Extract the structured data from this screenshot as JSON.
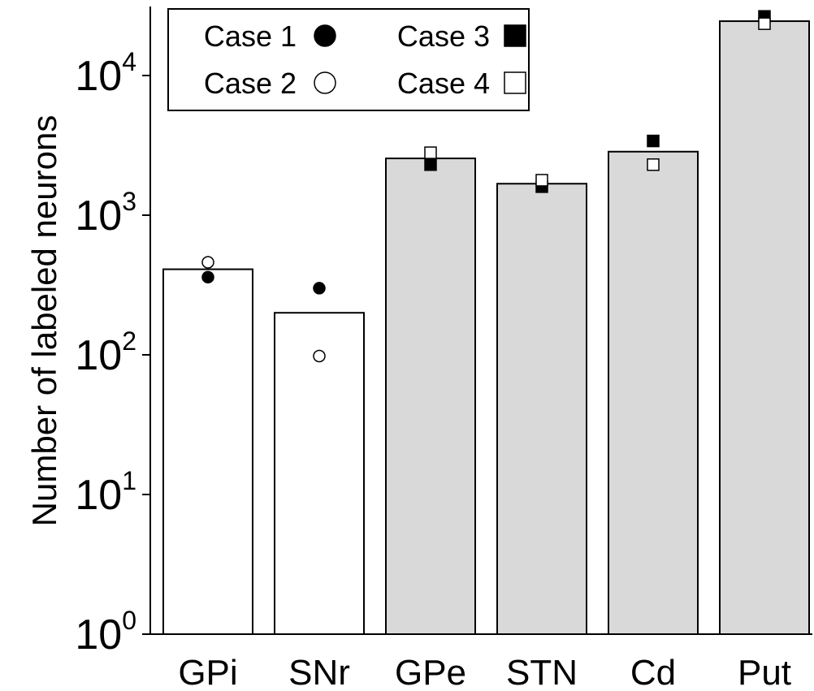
{
  "chart_data": {
    "type": "bar",
    "ylabel": "Number of labeled neurons",
    "yscale": "log",
    "ylim": [
      1,
      30000
    ],
    "yticks": [
      {
        "value": 1,
        "base": "10",
        "exp": "0"
      },
      {
        "value": 10,
        "base": "10",
        "exp": "1"
      },
      {
        "value": 100,
        "base": "10",
        "exp": "2"
      },
      {
        "value": 1000,
        "base": "10",
        "exp": "3"
      },
      {
        "value": 10000,
        "base": "10",
        "exp": "4"
      }
    ],
    "categories": [
      "GPi",
      "SNr",
      "GPe",
      "STN",
      "Cd",
      "Put"
    ],
    "bars": [
      {
        "category": "GPi",
        "value": 410,
        "fill": "#ffffff"
      },
      {
        "category": "SNr",
        "value": 200,
        "fill": "#ffffff"
      },
      {
        "category": "GPe",
        "value": 2550,
        "fill": "#d9d9d9"
      },
      {
        "category": "STN",
        "value": 1680,
        "fill": "#d9d9d9"
      },
      {
        "category": "Cd",
        "value": 2850,
        "fill": "#d9d9d9"
      },
      {
        "category": "Put",
        "value": 24500,
        "fill": "#d9d9d9"
      }
    ],
    "series": [
      {
        "name": "Case 1",
        "marker": "filled-circle",
        "points": [
          {
            "category": "GPi",
            "value": 360
          },
          {
            "category": "SNr",
            "value": 300
          }
        ]
      },
      {
        "name": "Case 2",
        "marker": "open-circle",
        "points": [
          {
            "category": "GPi",
            "value": 460
          },
          {
            "category": "SNr",
            "value": 98
          }
        ]
      },
      {
        "name": "Case 3",
        "marker": "filled-square",
        "points": [
          {
            "category": "GPe",
            "value": 2300
          },
          {
            "category": "STN",
            "value": 1600
          },
          {
            "category": "Cd",
            "value": 3400
          },
          {
            "category": "Put",
            "value": 26500
          }
        ]
      },
      {
        "name": "Case 4",
        "marker": "open-square",
        "points": [
          {
            "category": "GPe",
            "value": 2800
          },
          {
            "category": "STN",
            "value": 1780
          },
          {
            "category": "Cd",
            "value": 2300
          },
          {
            "category": "Put",
            "value": 23500
          }
        ]
      }
    ],
    "legend": {
      "position": "top-left",
      "entries": [
        {
          "label": "Case 1",
          "marker": "filled-circle"
        },
        {
          "label": "Case 3",
          "marker": "filled-square"
        },
        {
          "label": "Case 2",
          "marker": "open-circle"
        },
        {
          "label": "Case 4",
          "marker": "open-square"
        }
      ]
    },
    "colors": {
      "bar_white": "#ffffff",
      "bar_gray": "#d9d9d9",
      "stroke": "#000000"
    }
  }
}
